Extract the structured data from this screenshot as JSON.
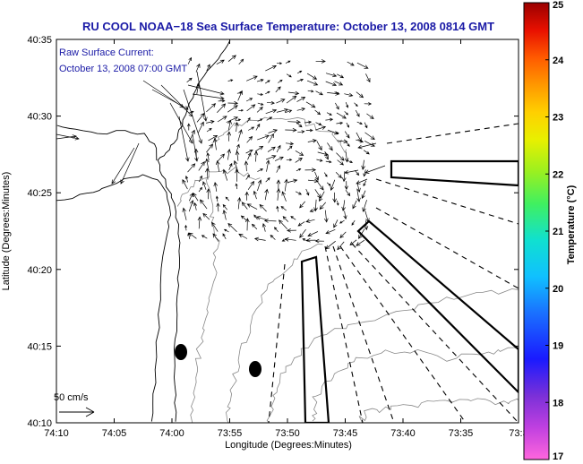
{
  "title": "RU COOL  NOAA−18  Sea Surface Temperature:  October 13, 2008 0814 GMT",
  "annotation": {
    "line1": "Raw Surface Current:",
    "line2": "October 13, 2008 07:00 GMT"
  },
  "scale_label": "50 cm/s",
  "chart_data": {
    "type": "map",
    "xlabel": "Longitude (Degrees:Minutes)",
    "ylabel": "Latitude (Degrees:Minutes)",
    "x_ticks": [
      "74:10",
      "74:05",
      "74:00",
      "73:55",
      "73:50",
      "73:45",
      "73:40",
      "73:35",
      "73:3"
    ],
    "y_ticks": [
      "40:35",
      "40:30",
      "40:25",
      "40:20",
      "40:15",
      "40:10"
    ],
    "colorbar": {
      "label": "Temperature (°C)",
      "ticks": [
        "25",
        "24",
        "23",
        "22",
        "21",
        "20",
        "19",
        "18",
        "17"
      ],
      "range": [
        17,
        25
      ]
    }
  }
}
